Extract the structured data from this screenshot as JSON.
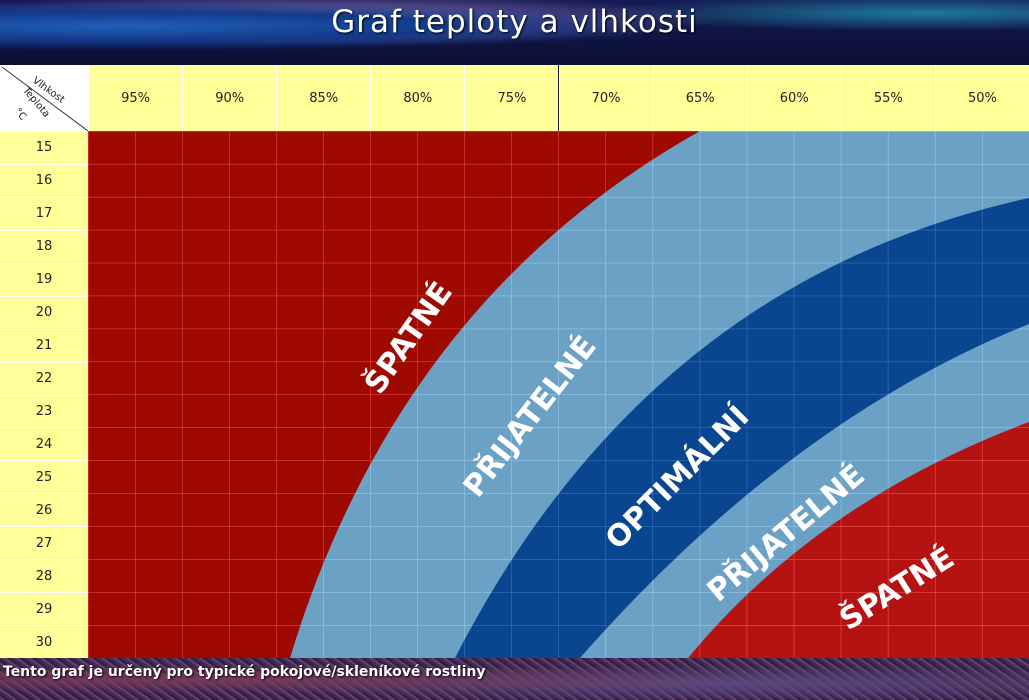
{
  "header": {
    "title": "Graf teploty a vlhkosti"
  },
  "footer": {
    "note": "Tento graf je určený pro typické pokojové/skleníkové rostliny"
  },
  "axes": {
    "corner_humidity_label": "Vlhkost",
    "corner_temperature_label": "Teplota",
    "corner_unit_label": "°C"
  },
  "colors": {
    "bad_left": "#9e0a00",
    "bad_right": "#b51212",
    "acceptable": "#6aa1c4",
    "optimal": "#0a468f",
    "header_bg": "#ffff99"
  },
  "chart_data": {
    "type": "heatmap",
    "title": "Graf teploty a vlhkosti",
    "xlabel": "Vlhkost",
    "ylabel": "Teplota °C",
    "x": [
      "95%",
      "90%",
      "85%",
      "80%",
      "75%",
      "70%",
      "65%",
      "60%",
      "55%",
      "50%"
    ],
    "y": [
      "15",
      "16",
      "17",
      "18",
      "19",
      "20",
      "21",
      "22",
      "23",
      "24",
      "25",
      "26",
      "27",
      "28",
      "29",
      "30"
    ],
    "zones": [
      {
        "name": "ŠPATNÉ",
        "meaning": "bad (too humid for temperature)",
        "color": "#9e0a00",
        "position": "upper-left"
      },
      {
        "name": "PŘIJATELNÉ",
        "meaning": "acceptable",
        "color": "#6aa1c4",
        "position": "between bad and optimal (humid side)"
      },
      {
        "name": "OPTIMÁLNÍ",
        "meaning": "optimal",
        "color": "#0a468f",
        "position": "diagonal band"
      },
      {
        "name": "PŘIJATELNÉ",
        "meaning": "acceptable",
        "color": "#6aa1c4",
        "position": "between optimal and bad (dry side)"
      },
      {
        "name": "ŠPATNÉ",
        "meaning": "bad (too dry for temperature)",
        "color": "#b51212",
        "position": "lower-right"
      }
    ],
    "footnote": "Tento graf je určený pro typické pokojové/skleníkové rostliny",
    "grid": true
  }
}
